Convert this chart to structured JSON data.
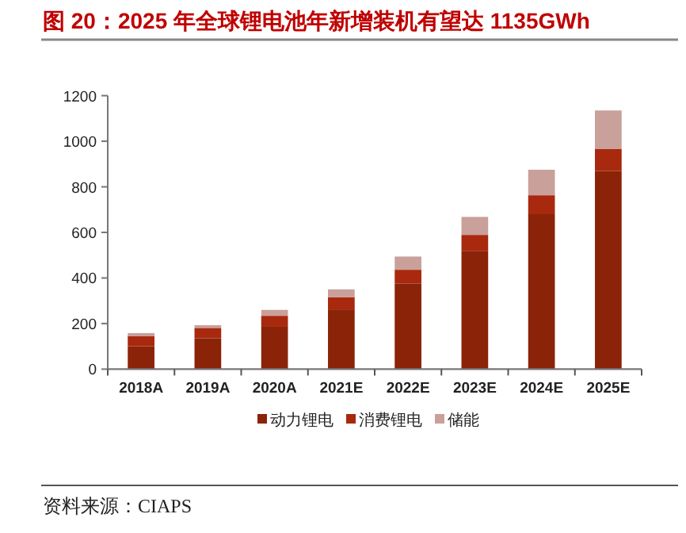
{
  "chart_data": {
    "type": "bar",
    "title": "图 20：2025 年全球锂电池年新增装机有望达 1135GWh",
    "stacked": true,
    "legend": "bottom",
    "categories": [
      "2018A",
      "2019A",
      "2020A",
      "2021E",
      "2022E",
      "2023E",
      "2024E",
      "2025E"
    ],
    "series": [
      {
        "name": "动力锂电",
        "color": "#8b2308",
        "values": [
          100,
          135,
          186,
          262,
          376,
          517,
          680,
          870
        ]
      },
      {
        "name": "消费锂电",
        "color": "#a8290e",
        "values": [
          44,
          46,
          48,
          54,
          60,
          72,
          83,
          97
        ]
      },
      {
        "name": "储能",
        "color": "#c9a09a",
        "values": [
          14,
          12,
          26,
          34,
          58,
          79,
          112,
          168
        ]
      }
    ],
    "ylim": [
      0,
      1200
    ],
    "yticks": [
      0,
      200,
      400,
      600,
      800,
      1000,
      1200
    ],
    "annotations": [
      "资料来源：CIAPS"
    ]
  }
}
